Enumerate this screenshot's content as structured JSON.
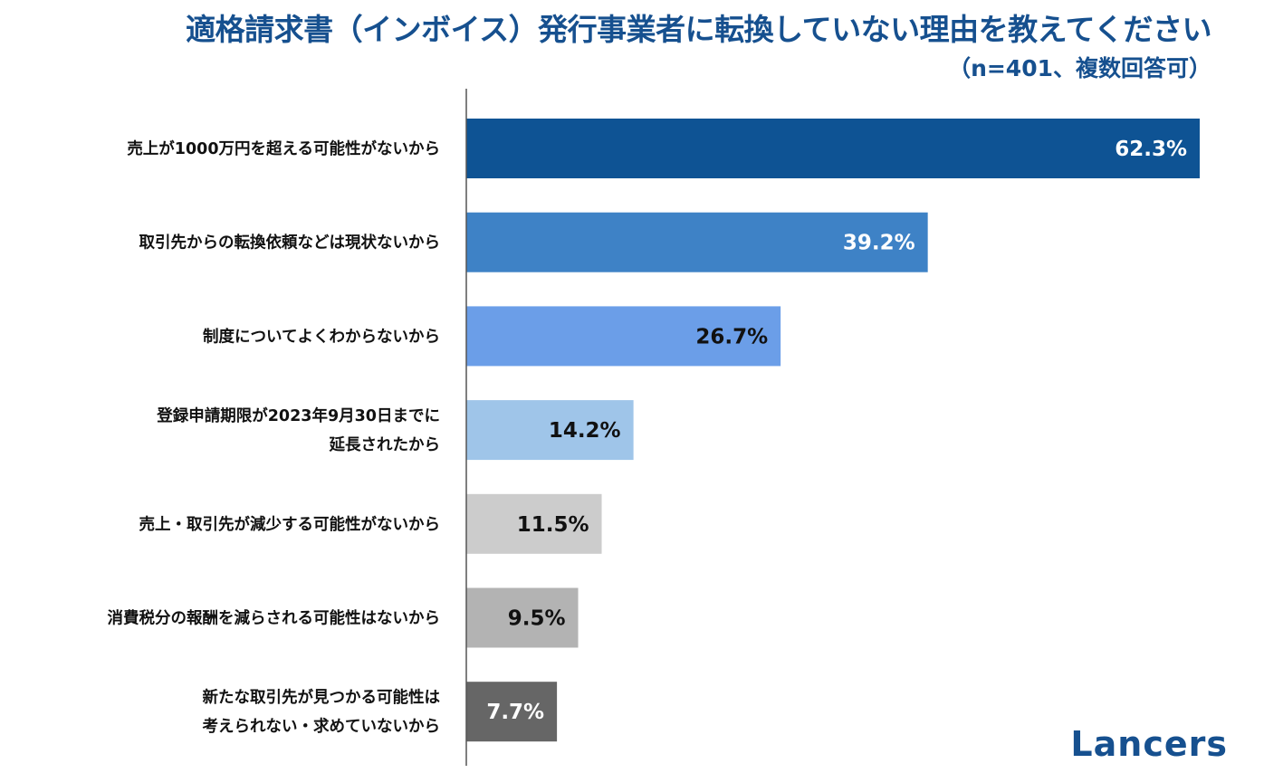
{
  "chart_data": {
    "type": "bar",
    "orientation": "horizontal",
    "title": "適格請求書（インボイス）発行事業者に転換していない理由を教えてください",
    "subtitle": "（n=401、複数回答可）",
    "unit": "%",
    "categories": [
      [
        "売上が1000万円を超える可能性がないから"
      ],
      [
        "取引先からの転換依頼などは現状ないから"
      ],
      [
        "制度についてよくわからないから"
      ],
      [
        "登録申請期限が2023年9月30日までに",
        "延長されたから"
      ],
      [
        "売上・取引先が減少する可能性がないから"
      ],
      [
        "消費税分の報酬を減らされる可能性はないから"
      ],
      [
        "新たな取引先が見つかる可能性は",
        "考えられない・求めていないから"
      ]
    ],
    "values": [
      62.3,
      39.2,
      26.7,
      14.2,
      11.5,
      9.5,
      7.7
    ],
    "value_labels": [
      "62.3%",
      "39.2%",
      "26.7%",
      "14.2%",
      "11.5%",
      "9.5%",
      "7.7%"
    ],
    "colors": [
      "#0e5394",
      "#3e82c6",
      "#6b9ee8",
      "#9fc5e9",
      "#cccccc",
      "#b3b3b3",
      "#666666"
    ],
    "label_colors": [
      "#ffffff",
      "#ffffff",
      "#111111",
      "#111111",
      "#111111",
      "#111111",
      "#ffffff"
    ],
    "xlim": [
      0,
      62.3
    ],
    "grid": false,
    "legend": "none"
  },
  "brand": {
    "logo_text": "Lancers",
    "color": "#16508f"
  }
}
